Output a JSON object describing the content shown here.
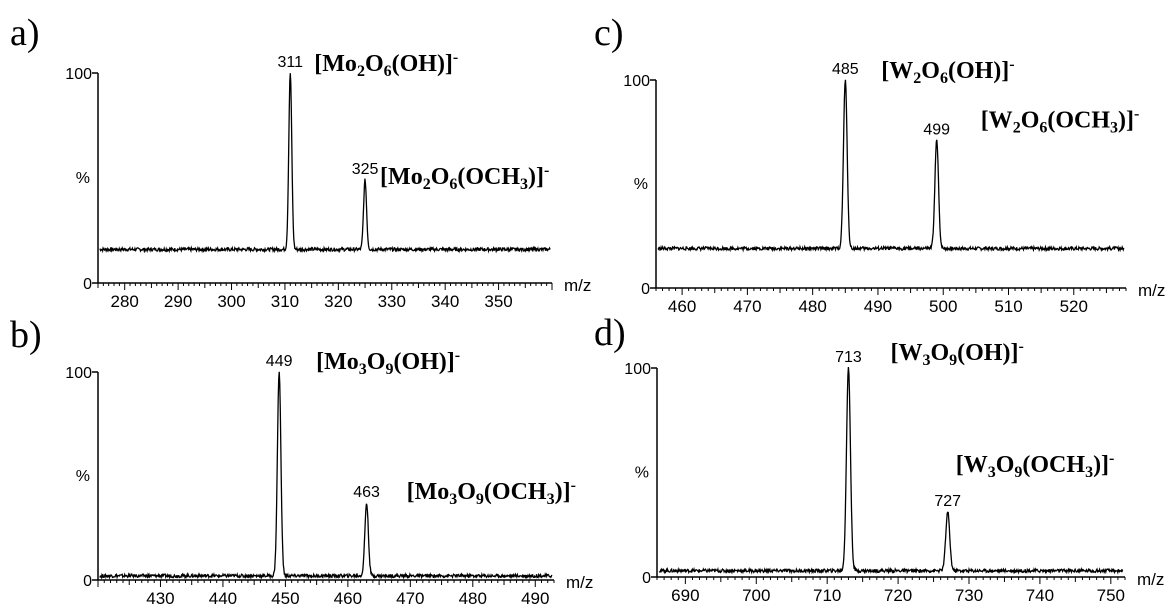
{
  "chart_data": [
    {
      "panel": "a)",
      "type": "line",
      "xlabel": "m/z",
      "ylabel": "%",
      "y_ticks": [
        "0",
        "100"
      ],
      "x_ticks": [
        280,
        290,
        300,
        310,
        320,
        330,
        340,
        350
      ],
      "xlim": [
        275,
        360
      ],
      "ylim": [
        0,
        100
      ],
      "baseline": 16,
      "peaks": [
        {
          "x": 311,
          "y": 100,
          "label": "311",
          "species": "[Mo2O6(OH)]-"
        },
        {
          "x": 325,
          "y": 49,
          "label": "325",
          "species": "[Mo2O6(OCH3)]-"
        }
      ]
    },
    {
      "panel": "b)",
      "type": "line",
      "xlabel": "m/z",
      "ylabel": "%",
      "y_ticks": [
        "0",
        "100"
      ],
      "x_ticks": [
        430,
        440,
        450,
        460,
        470,
        480,
        490
      ],
      "xlim": [
        420,
        493
      ],
      "ylim": [
        0,
        100
      ],
      "baseline": 2,
      "peaks": [
        {
          "x": 449,
          "y": 100,
          "label": "449",
          "species": "[Mo3O9(OH)]-"
        },
        {
          "x": 463,
          "y": 37,
          "label": "463",
          "species": "[Mo3O9(OCH3)]-"
        }
      ]
    },
    {
      "panel": "c)",
      "type": "line",
      "xlabel": "m/z",
      "ylabel": "%",
      "y_ticks": [
        "0",
        "100"
      ],
      "x_ticks": [
        460,
        470,
        480,
        490,
        500,
        510,
        520
      ],
      "xlim": [
        456,
        528
      ],
      "ylim": [
        0,
        100
      ],
      "baseline": 19,
      "peaks": [
        {
          "x": 485,
          "y": 100,
          "label": "485",
          "species": "[W2O6(OH)]-"
        },
        {
          "x": 499,
          "y": 71,
          "label": "499",
          "species": "[W2O6(OCH3)]-"
        }
      ]
    },
    {
      "panel": "d)",
      "type": "line",
      "xlabel": "m/z",
      "ylabel": "%",
      "y_ticks": [
        "0",
        "100"
      ],
      "x_ticks": [
        690,
        700,
        710,
        720,
        730,
        740,
        750
      ],
      "xlim": [
        686,
        752
      ],
      "ylim": [
        0,
        100
      ],
      "baseline": 3,
      "peaks": [
        {
          "x": 713,
          "y": 100,
          "label": "713",
          "species": "[W3O9(OH)]-"
        },
        {
          "x": 727,
          "y": 31,
          "label": "727",
          "species": "[W3O9(OCH3)]-"
        }
      ]
    }
  ]
}
